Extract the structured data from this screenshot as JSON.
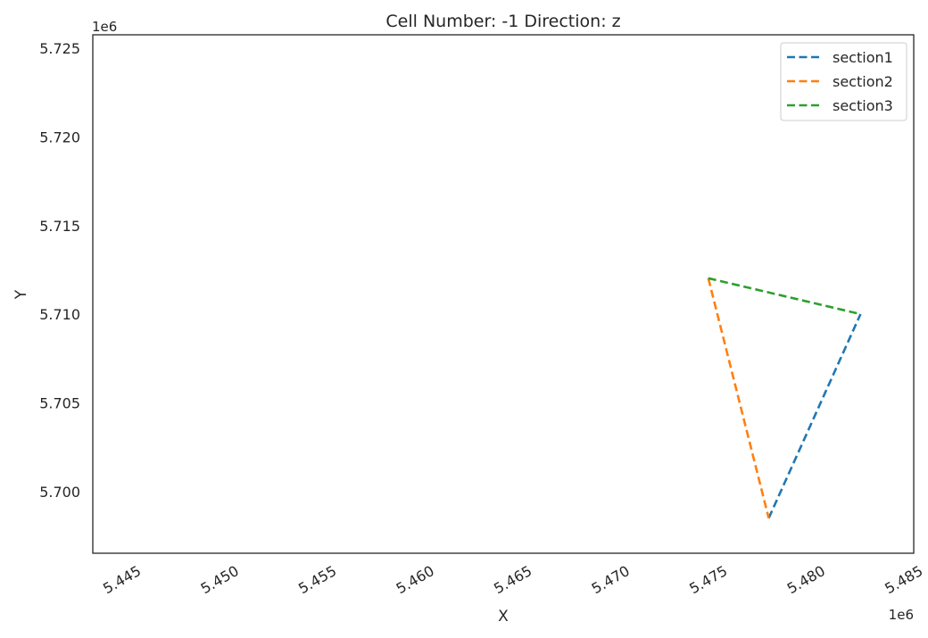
{
  "chart_data": {
    "type": "line",
    "title": "Cell Number: -1 Direction: z",
    "xlabel": "X",
    "ylabel": "Y",
    "x_offset_label": "1e6",
    "y_offset_label": "1e6",
    "xlim": [
      5.4433,
      5.4853
    ],
    "ylim": [
      5.69652,
      5.72576
    ],
    "x_ticks": [
      5.445,
      5.45,
      5.455,
      5.46,
      5.465,
      5.47,
      5.475,
      5.48,
      5.485
    ],
    "x_tick_labels": [
      "5.445",
      "5.450",
      "5.455",
      "5.460",
      "5.465",
      "5.470",
      "5.475",
      "5.480",
      "5.485"
    ],
    "y_ticks": [
      5.7,
      5.705,
      5.71,
      5.715,
      5.72,
      5.725
    ],
    "y_tick_labels": [
      "5.700",
      "5.705",
      "5.710",
      "5.715",
      "5.720",
      "5.725"
    ],
    "grid": false,
    "legend_position": "top-right",
    "line_style": "dashed",
    "series": [
      {
        "name": "section1",
        "color": "#1f77b4",
        "x": [
          5.47788,
          5.48258
        ],
        "y": [
          5.6985,
          5.71001
        ]
      },
      {
        "name": "section2",
        "color": "#ff7f0e",
        "x": [
          5.47479,
          5.47788
        ],
        "y": [
          5.71203,
          5.6985
        ]
      },
      {
        "name": "section3",
        "color": "#2ca02c",
        "x": [
          5.47479,
          5.48258
        ],
        "y": [
          5.71203,
          5.71001
        ]
      }
    ]
  }
}
